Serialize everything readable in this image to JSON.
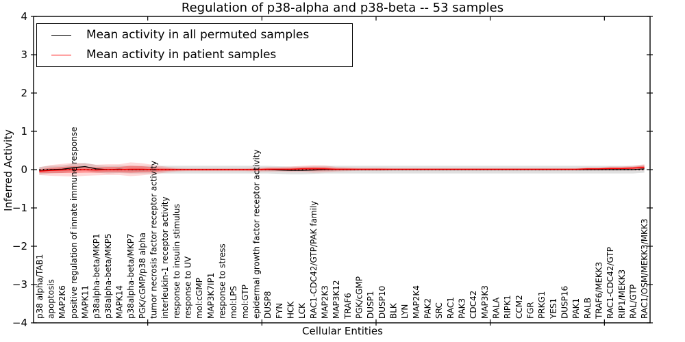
{
  "chart_data": {
    "type": "line",
    "title": "Regulation of p38-alpha and p38-beta -- 53 samples",
    "xlabel": "Cellular Entities",
    "ylabel": "Inferred Activity",
    "ylim": [
      -4,
      4
    ],
    "yticks": [
      4,
      3,
      2,
      1,
      0,
      -1,
      -2,
      -3,
      -4
    ],
    "x_major_tick_every": 10,
    "grid": false,
    "legend_position": "upper left",
    "categories": [
      "p38 alpha/TAB1",
      "apoptosis",
      "MAP2K6",
      "positive regulation of innate immune response",
      "MAPK11",
      "p38alpha-beta/MKP1",
      "p38alpha-beta/MKP5",
      "MAPK14",
      "p38alpha-beta/MKP7",
      "PGK/cGMP/p38 alpha",
      "tumor necrosis factor receptor activity",
      "interleukin-1 receptor activity",
      "response to insulin stimulus",
      "response to UV",
      "mol:cGMP",
      "MAP3K7IP1",
      "response to stress",
      "mol:LPS",
      "mol:GTP",
      "epidermal growth factor receptor activity",
      "DUSP8",
      "FYN",
      "HCK",
      "LCK",
      "RAC1-CDC42/GTP/PAK family",
      "MAP2K3",
      "MAP3K12",
      "TRAF6",
      "PGK/cGMP",
      "DUSP1",
      "DUSP10",
      "BLK",
      "LYN",
      "MAP2K4",
      "PAK2",
      "SRC",
      "RAC1",
      "PAK3",
      "CDC42",
      "MAP3K3",
      "RALA",
      "RIPK1",
      "CCM2",
      "FGR",
      "PRKG1",
      "YES1",
      "DUSP16",
      "PAK1",
      "RALB",
      "TRAF6/MEKK3",
      "RAC1-CDC42/GTP",
      "RIP1/MEKK3",
      "RAL/GTP",
      "RAC1/OSM/MEKK3/MKK3"
    ],
    "series": [
      {
        "name": "Mean activity in all permuted samples",
        "color": "#000000",
        "values": [
          -0.03,
          0,
          0.01,
          0.05,
          0.08,
          0.02,
          0,
          0.01,
          0,
          0,
          0,
          0,
          0,
          0,
          0,
          0,
          0,
          0,
          0,
          0,
          0,
          -0.01,
          -0.02,
          -0.02,
          -0.01,
          0,
          0,
          0,
          0,
          0,
          0,
          0,
          0,
          0,
          0,
          0,
          0,
          0,
          0,
          0,
          0,
          0,
          0,
          0,
          0,
          0,
          0,
          0,
          0,
          0,
          0,
          0,
          0,
          0.02
        ]
      },
      {
        "name": "Mean activity in patient samples",
        "color": "#ff0000",
        "values": [
          -0.04,
          -0.02,
          -0.01,
          0,
          0,
          -0.01,
          0,
          0,
          0.01,
          0.01,
          0,
          0,
          0,
          0,
          0,
          0,
          0,
          0,
          0,
          0,
          0.01,
          0.01,
          0.01,
          0.02,
          0.02,
          0.02,
          0.01,
          0.01,
          0.01,
          0.01,
          0.01,
          0.01,
          0.01,
          0.01,
          0.01,
          0.01,
          0.01,
          0.01,
          0.01,
          0.01,
          0.01,
          0.01,
          0.01,
          0.01,
          0.01,
          0.01,
          0.01,
          0.01,
          0.02,
          0.02,
          0.03,
          0.03,
          0.04,
          0.06
        ]
      }
    ],
    "patient_std": [
      0.05,
      0.07,
      0.08,
      0.09,
      0.08,
      0.07,
      0.07,
      0.07,
      0.09,
      0.08,
      0.06,
      0.04,
      0.025,
      0.02,
      0.02,
      0.02,
      0.02,
      0.02,
      0.02,
      0.025,
      0.03,
      0.03,
      0.035,
      0.04,
      0.05,
      0.045,
      0.03,
      0.025,
      0.02,
      0.02,
      0.02,
      0.015,
      0.015,
      0.015,
      0.015,
      0.015,
      0.015,
      0.015,
      0.015,
      0.015,
      0.015,
      0.015,
      0.015,
      0.015,
      0.015,
      0.015,
      0.015,
      0.015,
      0.02,
      0.02,
      0.025,
      0.025,
      0.03,
      0.04
    ],
    "permuted_band_halfwidth": 0.1,
    "zero_reference_line": {
      "y": 0,
      "style": "dotted",
      "color": "#000000"
    },
    "band_colors": {
      "permuted": "rgba(0,0,0,0.12)",
      "patient_inner": "rgba(255,0,0,0.30)",
      "patient_outer": "rgba(255,0,0,0.15)"
    }
  }
}
